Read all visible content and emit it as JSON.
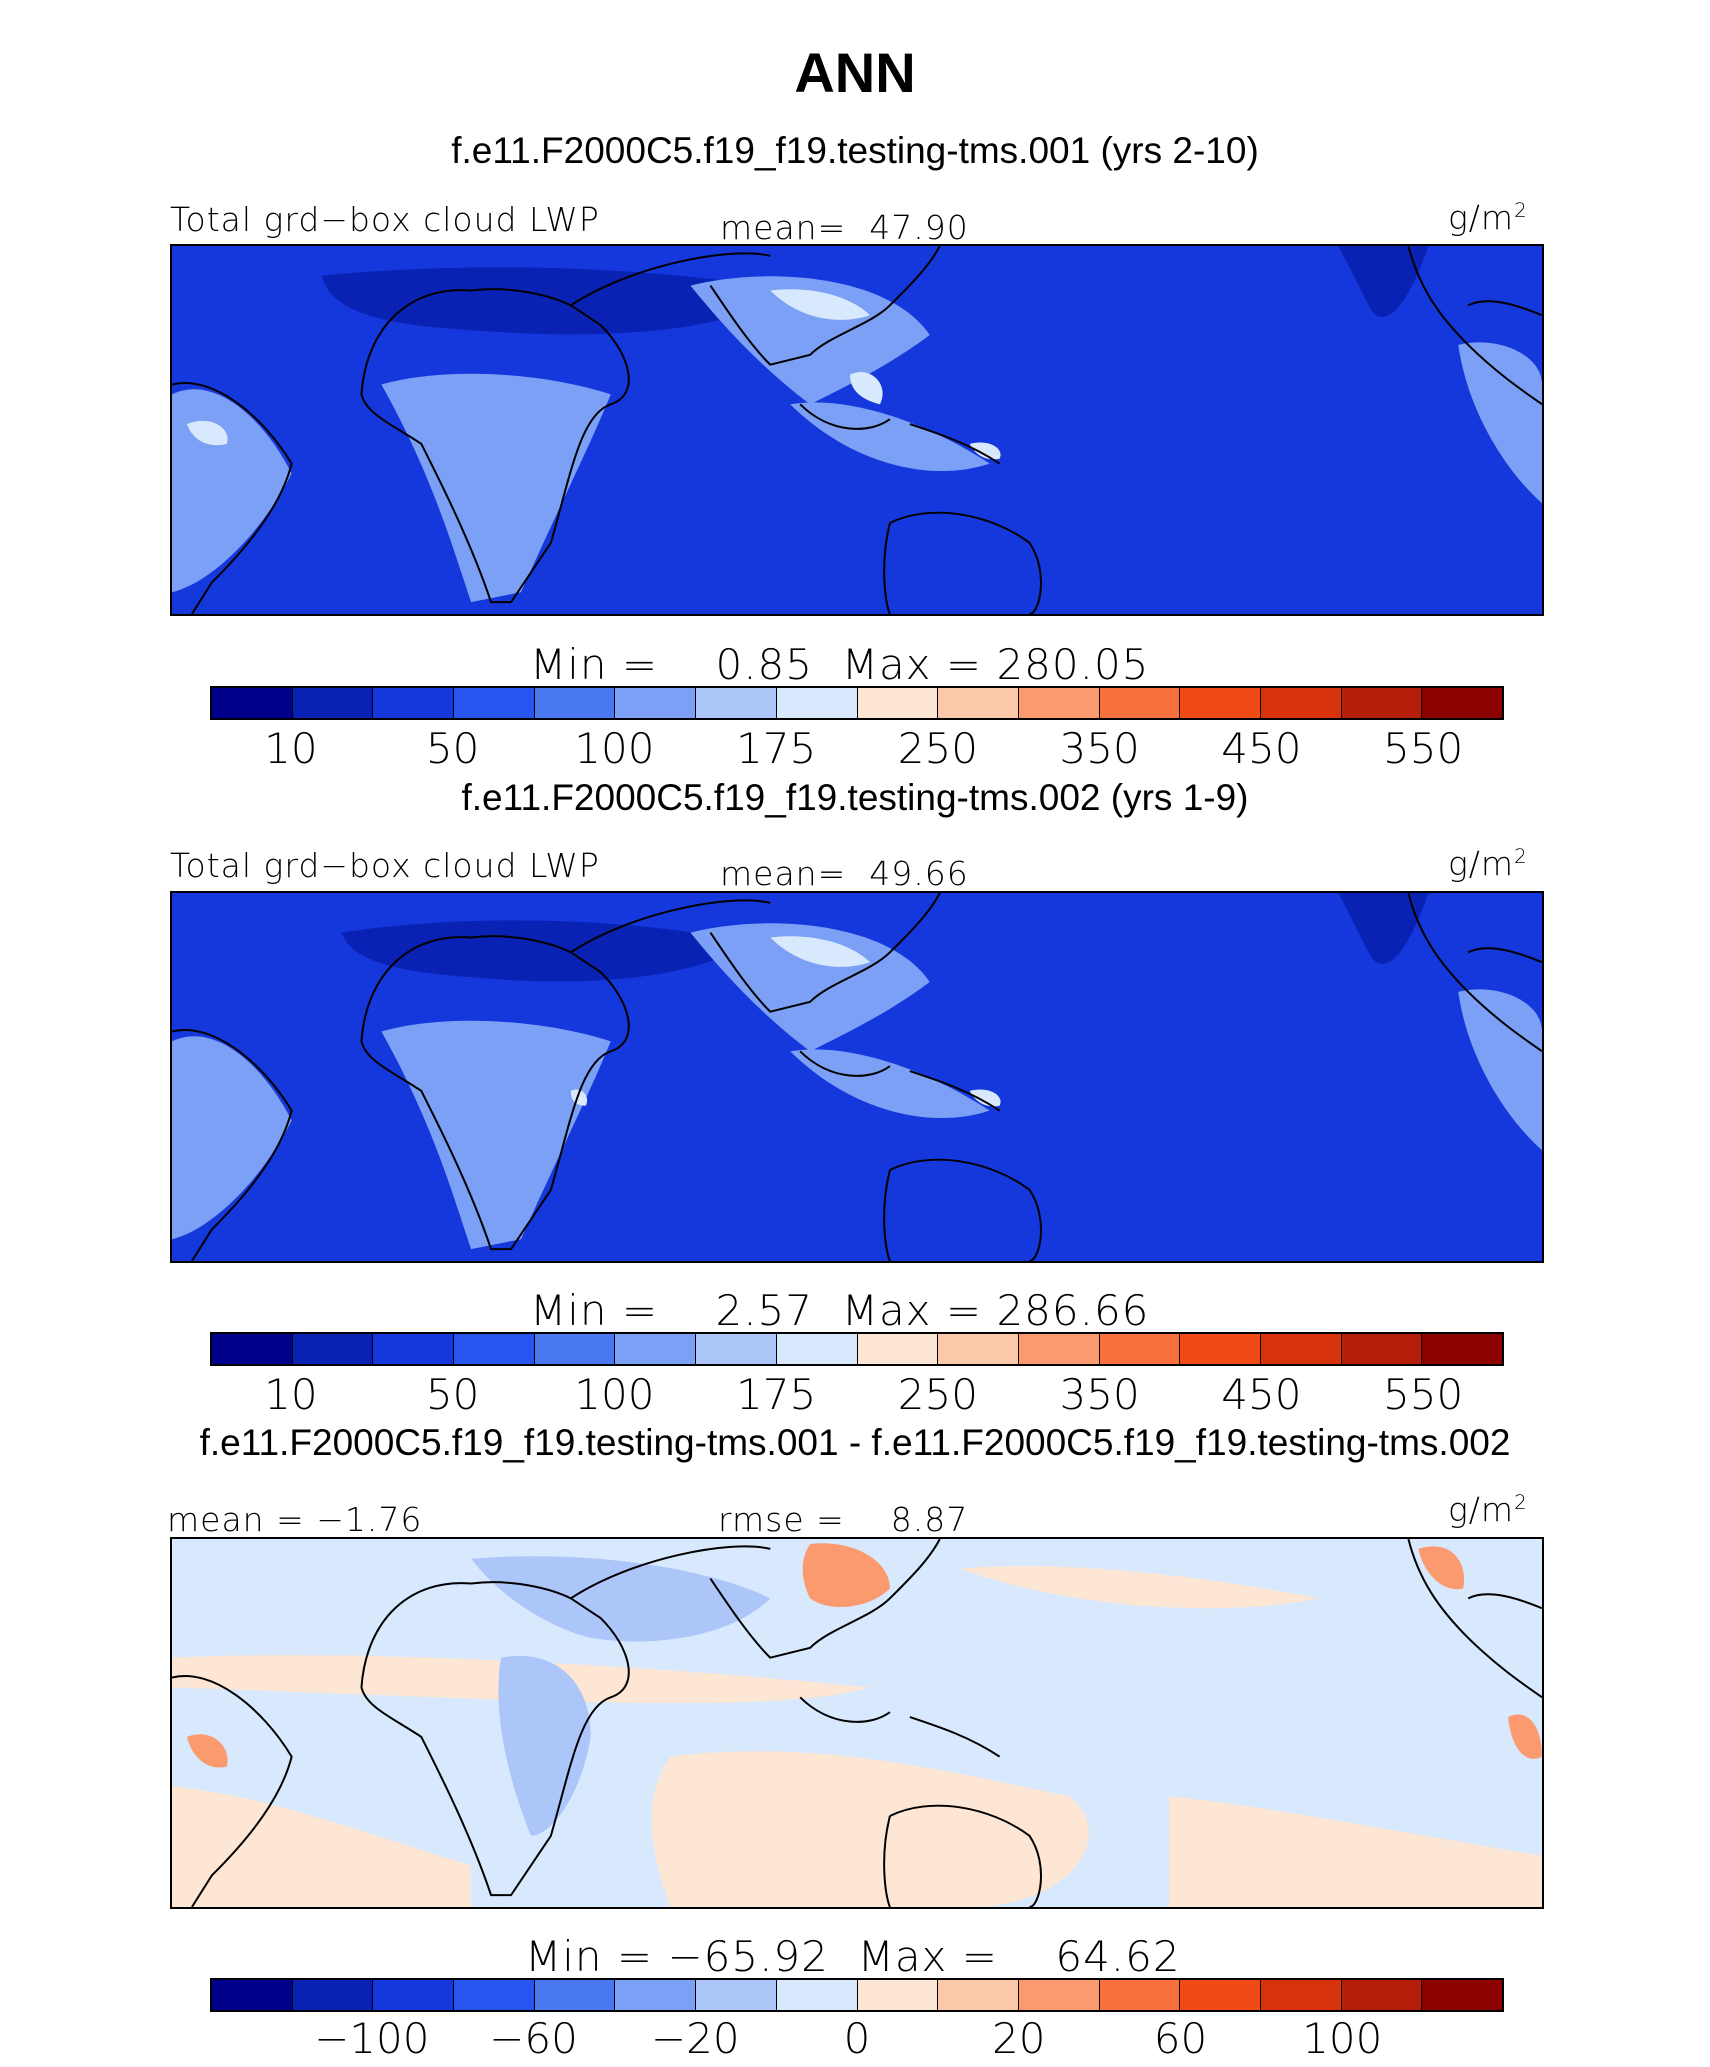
{
  "title": "ANN",
  "units": "g/m",
  "units_exp": "2",
  "panels": [
    {
      "case_title": "f.e11.F2000C5.f19_f19.testing-tms.001 (yrs 2-10)",
      "variable": "Total grd−box cloud LWP",
      "stat_label": "mean=",
      "stat_value": "47.90",
      "min_label": "Min =",
      "min_value": "0.85",
      "max_label": "Max =",
      "max_value": "280.05"
    },
    {
      "case_title": "f.e11.F2000C5.f19_f19.testing-tms.002 (yrs 1-9)",
      "variable": "Total grd−box cloud LWP",
      "stat_label": "mean=",
      "stat_value": "49.66",
      "min_label": "Min =",
      "min_value": "2.57",
      "max_label": "Max =",
      "max_value": "286.66"
    },
    {
      "case_title": "f.e11.F2000C5.f19_f19.testing-tms.001 - f.e11.F2000C5.f19_f19.testing-tms.002",
      "mean_label": "mean =",
      "mean_value": "−1.76",
      "rmse_label": "rmse =",
      "rmse_value": "8.87",
      "min_label": "Min =",
      "min_value": "−65.92",
      "max_label": "Max =",
      "max_value": "64.62"
    }
  ],
  "colorbar_colors": [
    "#00008c",
    "#0a22b4",
    "#1438dc",
    "#2855f0",
    "#4a78f0",
    "#7ba0f5",
    "#adc6fa",
    "#d8e8fd",
    "#fde6d4",
    "#fcc8aa",
    "#fa9a6e",
    "#f8703c",
    "#f04b14",
    "#d8330a",
    "#b41e0a",
    "#8c0000"
  ],
  "colorbar_ticks_abs": [
    "10",
    "50",
    "100",
    "175",
    "250",
    "350",
    "450",
    "550"
  ],
  "colorbar_ticks_diff": [
    "−100",
    "−60",
    "−20",
    "0",
    "20",
    "60",
    "100"
  ],
  "map_colors": {
    "ocean_abs": "#1438dc",
    "land_wet": "#7ba0f5",
    "land_wettest": "#d8e8fd",
    "desert": "#0a22b4",
    "peak": "#fde6d4",
    "diff_base": "#d8e8fd",
    "diff_pos": "#fde6d4",
    "diff_posmid": "#fa9a6e",
    "diff_neg": "#adc6fa",
    "coast": "#000000"
  }
}
